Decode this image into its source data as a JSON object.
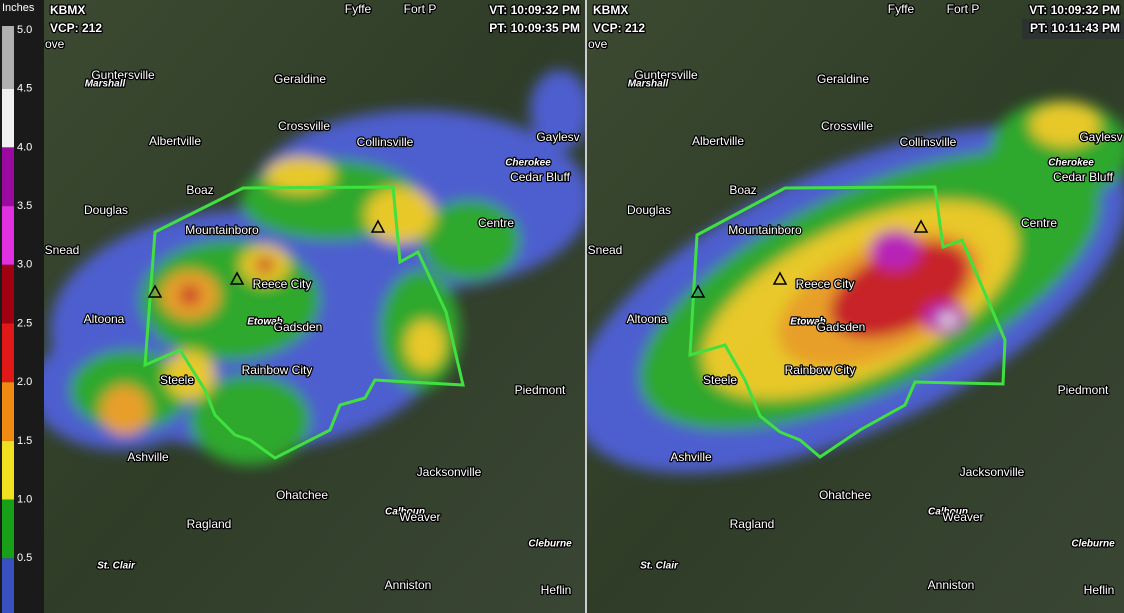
{
  "legend": {
    "title": "Inches",
    "labels": [
      "5.0",
      "4.5",
      "4.0",
      "3.5",
      "3.0",
      "2.5",
      "2.0",
      "1.5",
      "1.0",
      "0.5"
    ]
  },
  "panels": [
    {
      "radar": "KBMX",
      "vcp": "VCP: 212",
      "cut": "ove",
      "vt": "VT: 10:09:32 PM",
      "pt": "PT: 10:09:35 PM",
      "places": [
        "Fyffe",
        "Fort P",
        "Guntersville",
        "Marshall",
        "Geraldine",
        "Albertville",
        "Crossville",
        "Collinsville",
        "Gaylesv",
        "Cherokee",
        "Cedar Bluff",
        "Boaz",
        "Douglas",
        "Mountainboro",
        "Centre",
        "Snead",
        "Reece City",
        "Etowah",
        "Gadsden",
        "Altoona",
        "Steele",
        "Rainbow City",
        "Piedmont",
        "Ashville",
        "Jacksonville",
        "Ohatchee",
        "Calhoun",
        "Weaver",
        "Ragland",
        "Cleburne",
        "St. Clair",
        "Anniston",
        "Heflin"
      ]
    },
    {
      "radar": "KBMX",
      "vcp": "VCP: 212",
      "cut": "ove",
      "vt": "VT: 10:09:32 PM",
      "pt": "PT: 10:11:43 PM",
      "places": [
        "Fyffe",
        "Fort P",
        "Guntersville",
        "Marshall",
        "Geraldine",
        "Albertville",
        "Crossville",
        "Collinsville",
        "Gaylesv",
        "Cherokee",
        "Cedar Bluff",
        "Boaz",
        "Douglas",
        "Mountainboro",
        "Centre",
        "Snead",
        "Reece City",
        "Etowah",
        "Gadsden",
        "Altoona",
        "Steele",
        "Rainbow City",
        "Piedmont",
        "Ashville",
        "Jacksonville",
        "Ohatchee",
        "Calhoun",
        "Weaver",
        "Ragland",
        "Cleburne",
        "St. Clair",
        "Anniston",
        "Heflin"
      ]
    }
  ]
}
